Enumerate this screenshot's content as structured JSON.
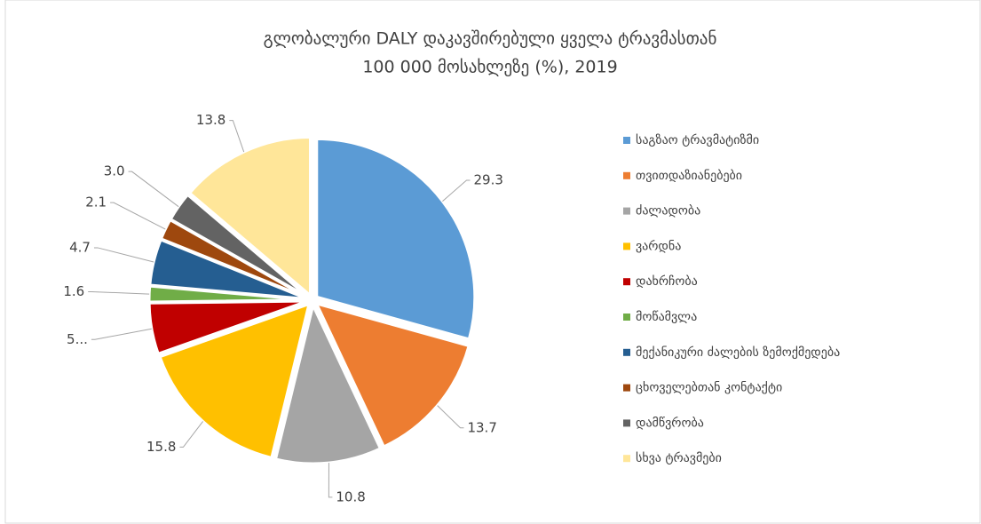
{
  "chart_data": {
    "type": "pie",
    "title": "გლობალური DALY დაკავშირებული ყველა ტრავმასთან",
    "subtitle": "100 000 მოსახლეზე (%), 2019",
    "categories": [
      "საგზაო ტრავმატიზმი",
      "თვითდაზიანებები",
      "ძალადობა",
      "ვარდნა",
      "დახრჩობა",
      "მოწამვლა",
      "მექანიკური ძალების ზემოქმედება",
      "ცხოველებთან კონტაქტი",
      "დამწვრობა",
      "სხვა ტრავმები"
    ],
    "values": [
      29.3,
      13.7,
      10.8,
      15.8,
      5.2,
      1.6,
      4.7,
      2.1,
      3.0,
      13.8
    ],
    "value_labels": [
      "29.3",
      "13.7",
      "10.8",
      "15.8",
      "5...",
      "1.6",
      "4.7",
      "2.1",
      "3.0",
      "13.8"
    ],
    "colors": [
      "#5b9bd5",
      "#ed7d31",
      "#a5a5a5",
      "#ffc000",
      "#c00000",
      "#70ad47",
      "#255e91",
      "#9e480e",
      "#636363",
      "#ffe699"
    ],
    "legend": "right"
  }
}
